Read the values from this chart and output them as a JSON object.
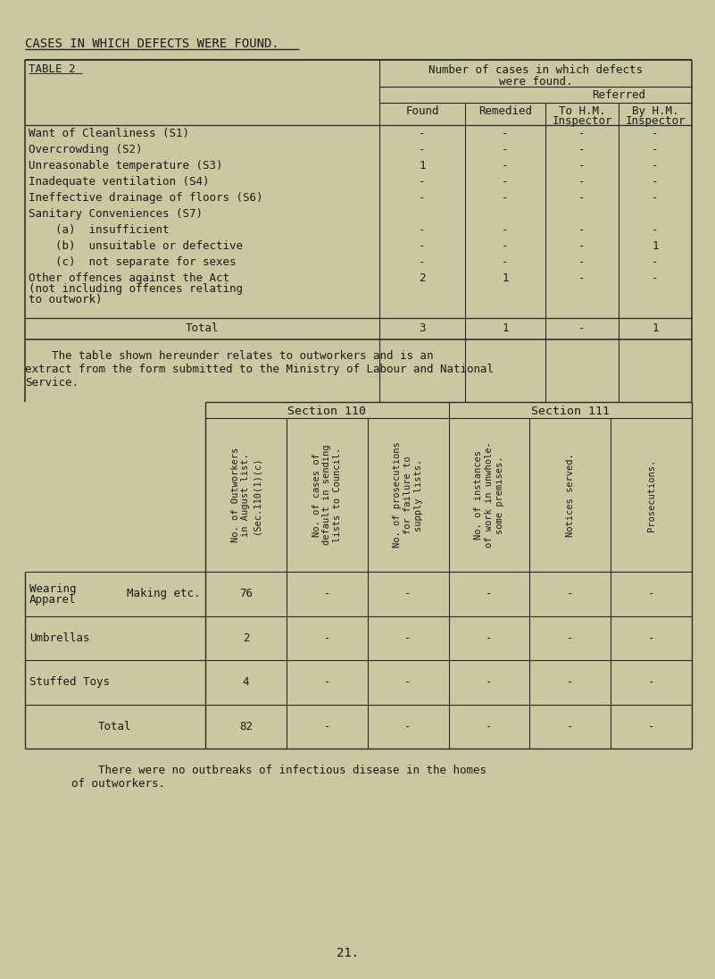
{
  "bg_color": "#c9c8a0",
  "text_color": "#1a1a1a",
  "page_title": "CASES IN WHICH DEFECTS WERE FOUND.",
  "table1_label": "TABLE 2",
  "table1_rows": [
    {
      "label": "Want of Cleanliness (S1)",
      "found": "-",
      "remedied": "-",
      "to_hm": "-",
      "by_hm": "-",
      "indent": false
    },
    {
      "label": "Overcrowding (S2)",
      "found": "-",
      "remedied": "-",
      "to_hm": "-",
      "by_hm": "-",
      "indent": false
    },
    {
      "label": "Unreasonable temperature (S3)",
      "found": "1",
      "remedied": "-",
      "to_hm": "-",
      "by_hm": "-",
      "indent": false
    },
    {
      "label": "Inadequate ventilation (S4)",
      "found": "-",
      "remedied": "-",
      "to_hm": "-",
      "by_hm": "-",
      "indent": false
    },
    {
      "label": "Ineffective drainage of floors (S6)",
      "found": "-",
      "remedied": "-",
      "to_hm": "-",
      "by_hm": "-",
      "indent": false
    },
    {
      "label": "Sanitary Conveniences (S7)",
      "found": "",
      "remedied": "",
      "to_hm": "",
      "by_hm": "",
      "indent": false
    },
    {
      "label": "    (a)  insufficient",
      "found": "-",
      "remedied": "-",
      "to_hm": "-",
      "by_hm": "-",
      "indent": true
    },
    {
      "label": "    (b)  unsuitable or defective",
      "found": "-",
      "remedied": "-",
      "to_hm": "-",
      "by_hm": "1",
      "indent": true
    },
    {
      "label": "    (c)  not separate for sexes",
      "found": "-",
      "remedied": "-",
      "to_hm": "-",
      "by_hm": "-",
      "indent": true
    },
    {
      "label": "Other offences against the Act",
      "found": "2",
      "remedied": "1",
      "to_hm": "-",
      "by_hm": "-",
      "indent": false,
      "label2": "(not including offences relating",
      "label3": "to outwork)"
    }
  ],
  "paragraph1_lines": [
    "    The table shown hereunder relates to outworkers and is an",
    "extract from the form submitted to the Ministry of Labour and National",
    "Service."
  ],
  "table2_col_headers": [
    "No. of Outworkers\nin August list.\n(Sec.110(1)(c)",
    "No. of cases of\ndefault in sending\nlists to Council.",
    "No. of prosecutions\nfor failure to\nsupply lists.",
    "No. of instances\nof work in unwhole-\nsome premises.",
    "Notices served.",
    "Prosecutions."
  ],
  "table2_rows": [
    {
      "main": "Wearing",
      "sub": "Making etc.",
      "col2": "Apparel",
      "d1": "76",
      "d2": "-",
      "d3": "-",
      "d4": "-",
      "d5": "-",
      "d6": "-"
    },
    {
      "main": "Umbrellas",
      "sub": "",
      "col2": "",
      "d1": "2",
      "d2": "-",
      "d3": "-",
      "d4": "-",
      "d5": "-",
      "d6": "-"
    },
    {
      "main": "Stuffed Toys",
      "sub": "",
      "col2": "",
      "d1": "4",
      "d2": "-",
      "d3": "-",
      "d4": "-",
      "d5": "-",
      "d6": "-"
    },
    {
      "main": "Total",
      "sub": "",
      "col2": "",
      "d1": "82",
      "d2": "-",
      "d3": "-",
      "d4": "-",
      "d5": "-",
      "d6": "-"
    }
  ],
  "paragraph2_lines": [
    "    There were no outbreaks of infectious disease in the homes",
    "of outworkers."
  ],
  "page_number": "21."
}
